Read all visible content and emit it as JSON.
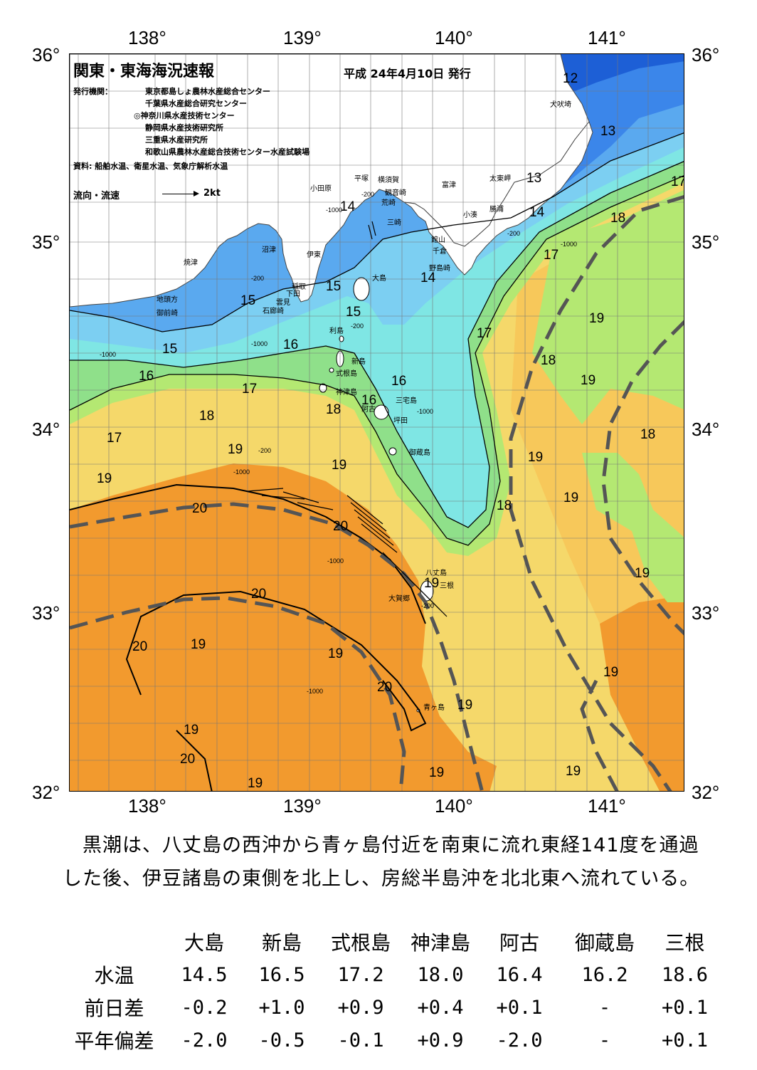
{
  "title": "関東・東海海況速報",
  "issue_date": "平成 24年4月10日 発行",
  "publisher_label": "発行機関：",
  "publishers": [
    "東京都島しょ農林水産総合センター",
    "千葉県水産総合研究センター",
    "◎神奈川県水産技術センター",
    "静岡県水産技術研究所",
    "三重県水産研究所",
    "和歌山県農林水産総合技術センター水産試験場"
  ],
  "sources": "資料: 船舶水温、衛星水温、気象庁解析水温",
  "current_legend": {
    "label": "流向・流速",
    "scale": "2kt"
  },
  "lon_labels": [
    "138°",
    "139°",
    "140°",
    "141°"
  ],
  "lat_labels": [
    "36°",
    "35°",
    "34°",
    "33°",
    "32°"
  ],
  "isotherm_labels": [
    "12",
    "13",
    "13",
    "14",
    "14",
    "14",
    "15",
    "15",
    "15",
    "15",
    "16",
    "16",
    "16",
    "16",
    "17",
    "17",
    "17",
    "17",
    "17",
    "18",
    "18",
    "18",
    "18",
    "18",
    "18",
    "19",
    "19",
    "19",
    "19",
    "19",
    "19",
    "19",
    "19",
    "19",
    "19",
    "19",
    "19",
    "19",
    "20",
    "20",
    "20",
    "20",
    "20",
    "20"
  ],
  "depth_labels": [
    "-200",
    "-1000",
    "-200",
    "-1000",
    "-200",
    "-1000",
    "-1000",
    "-200",
    "-1000",
    "-200",
    "-1000",
    "-200",
    "-1000",
    "-1000"
  ],
  "place_names": [
    "小田原",
    "平塚",
    "横須賀",
    "観音崎",
    "富津",
    "荒崎",
    "三崎",
    "太東岬",
    "小湊",
    "勝浦",
    "館山",
    "千倉",
    "野島崎",
    "犬吠埼",
    "沼津",
    "伊東",
    "焼津",
    "稲取",
    "下田",
    "雲見",
    "石廊崎",
    "地頭方",
    "御前崎",
    "大島",
    "利島",
    "新島",
    "式根島",
    "神津島",
    "三宅島",
    "阿古",
    "坪田",
    "御蔵島",
    "八丈島",
    "三根",
    "大賀郷",
    "青ヶ島"
  ],
  "commentary": "黒潮は、八丈島の西沖から青ヶ島付近を南東に流れ東経141度を通過した後、伊豆諸島の東側を北上し、房総半島沖を北北東へ流れている。",
  "table": {
    "columns": [
      "大島",
      "新島",
      "式根島",
      "神津島",
      "阿古",
      "御蔵島",
      "三根"
    ],
    "rows": [
      {
        "label": "水温",
        "values": [
          "14.5",
          "16.5",
          "17.2",
          "18.0",
          "16.4",
          "16.2",
          "18.6"
        ]
      },
      {
        "label": "前日差",
        "values": [
          "-0.2",
          "+1.0",
          "+0.9",
          "+0.4",
          "+0.1",
          "-",
          "+0.1"
        ]
      },
      {
        "label": "平年偏差",
        "values": [
          "-2.0",
          "-0.5",
          "-0.1",
          "+0.9",
          "-2.0",
          "-",
          "+0.1"
        ]
      }
    ]
  },
  "colors": {
    "c12": "#1d5fd6",
    "c13": "#3b86ea",
    "c14": "#5aa9ef",
    "c15": "#7ccff2",
    "c16": "#7fe6e4",
    "c17": "#8fe08a",
    "c18": "#b4e872",
    "c19a": "#f5d86a",
    "c19": "#f7c85a",
    "c20": "#f29a2e",
    "land": "#ffffff",
    "kuroshio_axis": "#555555"
  }
}
